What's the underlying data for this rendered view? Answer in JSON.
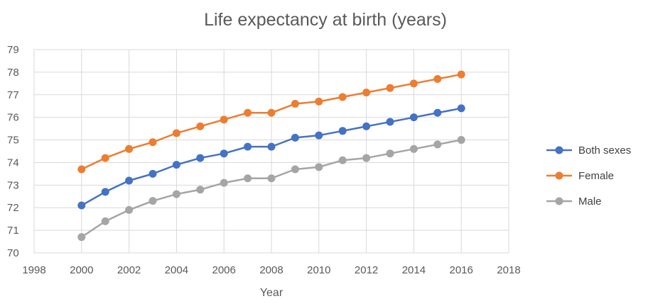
{
  "chart_data": {
    "type": "line",
    "title": "Life expectancy at birth (years)",
    "xlabel": "Year",
    "ylabel": "",
    "xlim": [
      1998,
      2018
    ],
    "ylim": [
      70,
      79
    ],
    "xticks": [
      1998,
      2000,
      2002,
      2004,
      2006,
      2008,
      2010,
      2012,
      2014,
      2016,
      2018
    ],
    "yticks": [
      70,
      71,
      72,
      73,
      74,
      75,
      76,
      77,
      78,
      79
    ],
    "grid": true,
    "legend_position": "right",
    "x": [
      2000,
      2001,
      2002,
      2003,
      2004,
      2005,
      2006,
      2007,
      2008,
      2009,
      2010,
      2011,
      2012,
      2013,
      2014,
      2015,
      2016
    ],
    "series": [
      {
        "name": "Both sexes",
        "color": "#4472C4",
        "values": [
          72.1,
          72.7,
          73.2,
          73.5,
          73.9,
          74.2,
          74.4,
          74.7,
          74.7,
          75.1,
          75.2,
          75.4,
          75.6,
          75.8,
          76.0,
          76.2,
          76.4
        ]
      },
      {
        "name": "Female",
        "color": "#ED7D31",
        "values": [
          73.7,
          74.2,
          74.6,
          74.9,
          75.3,
          75.6,
          75.9,
          76.2,
          76.2,
          76.6,
          76.7,
          76.9,
          77.1,
          77.3,
          77.5,
          77.7,
          77.9
        ]
      },
      {
        "name": "Male",
        "color": "#A5A5A5",
        "values": [
          70.7,
          71.4,
          71.9,
          72.3,
          72.6,
          72.8,
          73.1,
          73.3,
          73.3,
          73.7,
          73.8,
          74.1,
          74.2,
          74.4,
          74.6,
          74.8,
          75.0
        ]
      }
    ]
  }
}
